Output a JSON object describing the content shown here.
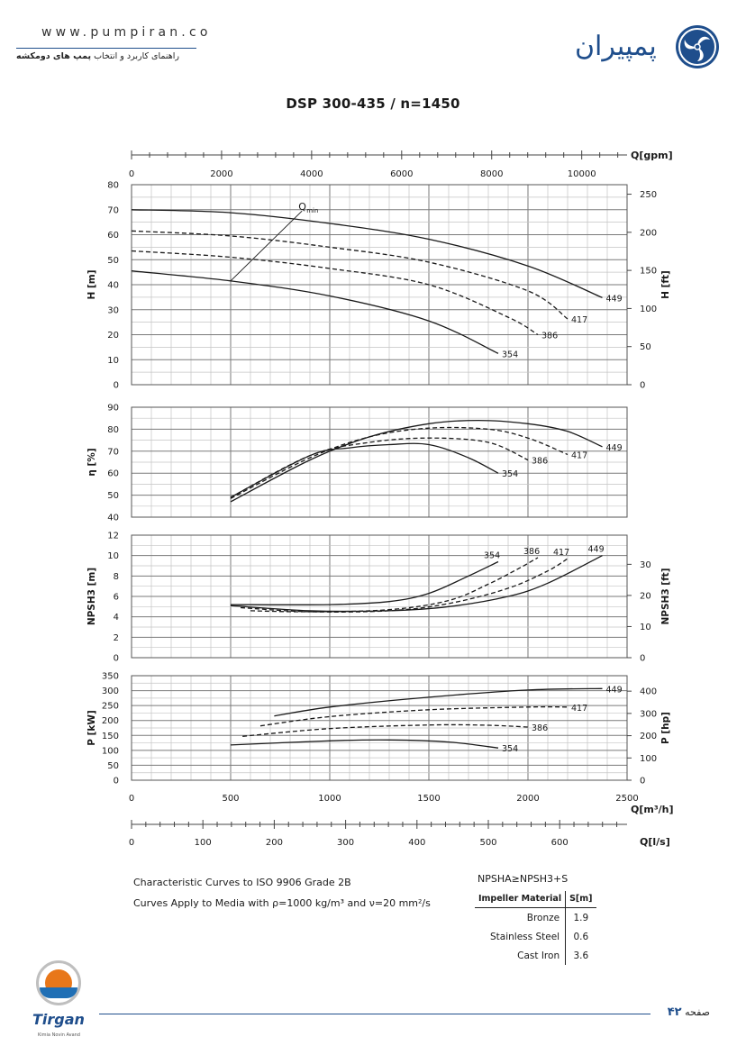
{
  "header": {
    "website": "www.pumpiran.co",
    "subtitle_prefix": "راهنمای کاربرد و انتخاب ",
    "subtitle_bold": "پمپ های دومکشه",
    "brand_name": "پمپیران"
  },
  "title": "DSP 300-435 / n=1450",
  "chart_data": {
    "type": "line",
    "title": "DSP 300-435 / n=1450",
    "x_axes": {
      "top": {
        "label": "Q[gpm]",
        "ticks": [
          "0",
          "2000",
          "4000",
          "6000",
          "8000",
          "10000"
        ]
      },
      "bottom": {
        "label": "Q[m³/h]",
        "ticks": [
          "0",
          "500",
          "1000",
          "1500",
          "2000",
          "2500"
        ]
      },
      "secondary": {
        "label": "Q[l/s]",
        "ticks": [
          "0",
          "100",
          "200",
          "300",
          "400",
          "500",
          "600"
        ]
      },
      "xlim_m3h": [
        0,
        2500
      ]
    },
    "panels": [
      {
        "id": "head",
        "ylabel": "H [m]",
        "ylabel2": "H [ft]",
        "ylim": [
          0,
          80
        ],
        "yticks": [
          "0",
          "10",
          "20",
          "30",
          "40",
          "50",
          "60",
          "70",
          "80"
        ],
        "yticks2": [
          "0",
          "50",
          "100",
          "150",
          "200",
          "250"
        ],
        "annotation": "Qmin",
        "qmin_line": {
          "x": [
            500,
            860
          ],
          "y": [
            41.5,
            69.5
          ]
        },
        "series": [
          {
            "name": "449",
            "dashed": false,
            "x": [
              0,
              500,
              1000,
              1500,
              2000,
              2375
            ],
            "y": [
              70,
              68.8,
              64.5,
              58.2,
              47.5,
              34.8
            ]
          },
          {
            "name": "417",
            "dashed": true,
            "x": [
              0,
              500,
              1000,
              1500,
              2000,
              2200
            ],
            "y": [
              61.5,
              59.5,
              55,
              49,
              37.5,
              26.3
            ]
          },
          {
            "name": "386",
            "dashed": true,
            "x": [
              0,
              500,
              1000,
              1500,
              1900,
              2050
            ],
            "y": [
              53.5,
              51,
              46.5,
              40,
              27,
              20
            ]
          },
          {
            "name": "354",
            "dashed": false,
            "x": [
              0,
              500,
              1000,
              1500,
              1850
            ],
            "y": [
              45.5,
              41.5,
              35.5,
              25.5,
              12.5
            ]
          }
        ]
      },
      {
        "id": "efficiency",
        "ylabel": "η [%]",
        "ylim": [
          40,
          90
        ],
        "yticks": [
          "40",
          "50",
          "60",
          "70",
          "80",
          "90"
        ],
        "series": [
          {
            "name": "449",
            "dashed": false,
            "x": [
              500,
              900,
              1200,
              1500,
              1750,
              2000,
              2200,
              2375
            ],
            "y": [
              47,
              66,
              76.5,
              82.5,
              84,
              82.5,
              79,
              72
            ]
          },
          {
            "name": "417",
            "dashed": true,
            "x": [
              500,
              900,
              1200,
              1500,
              1800,
              2000,
              2200
            ],
            "y": [
              48.5,
              67,
              76.5,
              80.5,
              80,
              76,
              68.5
            ]
          },
          {
            "name": "386",
            "dashed": true,
            "x": [
              500,
              900,
              1200,
              1500,
              1800,
              2000
            ],
            "y": [
              49,
              68,
              74,
              76,
              74,
              66
            ]
          },
          {
            "name": "354",
            "dashed": false,
            "x": [
              500,
              900,
              1100,
              1300,
              1500,
              1700,
              1850
            ],
            "y": [
              49,
              68,
              71.5,
              73,
              73,
              67,
              60
            ]
          }
        ]
      },
      {
        "id": "npsh",
        "ylabel": "NPSH3 [m]",
        "ylabel2": "NPSH3 [ft]",
        "ylim": [
          0,
          12
        ],
        "yticks": [
          "0",
          "2",
          "4",
          "6",
          "8",
          "10",
          "12"
        ],
        "yticks2": [
          "0",
          "10",
          "20",
          "30"
        ],
        "series": [
          {
            "name": "449",
            "dashed": false,
            "x": [
              500,
              900,
              1300,
              1600,
              1900,
              2100,
              2375
            ],
            "y": [
              5.1,
              4.6,
              4.6,
              5,
              6,
              7.3,
              10
            ]
          },
          {
            "name": "417",
            "dashed": true,
            "x": [
              550,
              900,
              1300,
              1600,
              1900,
              2100,
              2200
            ],
            "y": [
              4.9,
              4.5,
              4.6,
              5.3,
              6.8,
              8.5,
              9.7
            ]
          },
          {
            "name": "386",
            "dashed": true,
            "x": [
              600,
              900,
              1300,
              1600,
              1800,
              1950,
              2050
            ],
            "y": [
              4.6,
              4.5,
              4.7,
              5.6,
              7.2,
              8.7,
              9.8
            ]
          },
          {
            "name": "354",
            "dashed": false,
            "x": [
              500,
              1000,
              1300,
              1500,
              1700,
              1850
            ],
            "y": [
              5.2,
              5.2,
              5.5,
              6.3,
              8,
              9.4
            ]
          }
        ]
      },
      {
        "id": "power",
        "ylabel": "P [kW]",
        "ylabel2": "P [hp]",
        "ylim": [
          0,
          350
        ],
        "yticks": [
          "0",
          "50",
          "100",
          "150",
          "200",
          "250",
          "300",
          "350"
        ],
        "yticks2": [
          "0",
          "100",
          "200",
          "300",
          "400"
        ],
        "series": [
          {
            "name": "449",
            "dashed": false,
            "x": [
              720,
              1000,
              1500,
              2000,
              2375
            ],
            "y": [
              215,
              245,
              278,
              302,
              307
            ]
          },
          {
            "name": "417",
            "dashed": true,
            "x": [
              650,
              1000,
              1500,
              2000,
              2200
            ],
            "y": [
              182,
              213,
              236,
              245,
              245
            ]
          },
          {
            "name": "386",
            "dashed": true,
            "x": [
              560,
              1000,
              1500,
              1800,
              2000
            ],
            "y": [
              147,
              173,
              185,
              184,
              178
            ]
          },
          {
            "name": "354",
            "dashed": false,
            "x": [
              500,
              1000,
              1300,
              1600,
              1850
            ],
            "y": [
              118,
              132,
              135,
              128,
              108
            ]
          }
        ]
      }
    ]
  },
  "notes": {
    "line1": "Characteristic Curves to ISO 9906 Grade 2B",
    "line2_prefix": "Curves Apply to Media with  ",
    "line2_rho": "ρ=1000 kg/m³",
    "line2_and": " and ",
    "line2_nu": "ν=20 mm²/s"
  },
  "npsh_table": {
    "title": "NPSHA≥NPSH3+S",
    "headers": [
      "Impeller Material",
      "S[m]"
    ],
    "rows": [
      {
        "material": "Bronze",
        "s": "1.9"
      },
      {
        "material": "Stainless Steel",
        "s": "0.6"
      },
      {
        "material": "Cast Iron",
        "s": "3.6"
      }
    ]
  },
  "footer": {
    "company": "Tirgan",
    "company_sub": "Kimia Novin Avand",
    "page_label": "صفحه",
    "page_number": "۴۲"
  },
  "colors": {
    "brand": "#1f4e8c",
    "grid_major": "#7a7a7a",
    "grid_minor": "#c4c4c4",
    "curve": "#1a1a1a",
    "accent": "#e8771a"
  }
}
